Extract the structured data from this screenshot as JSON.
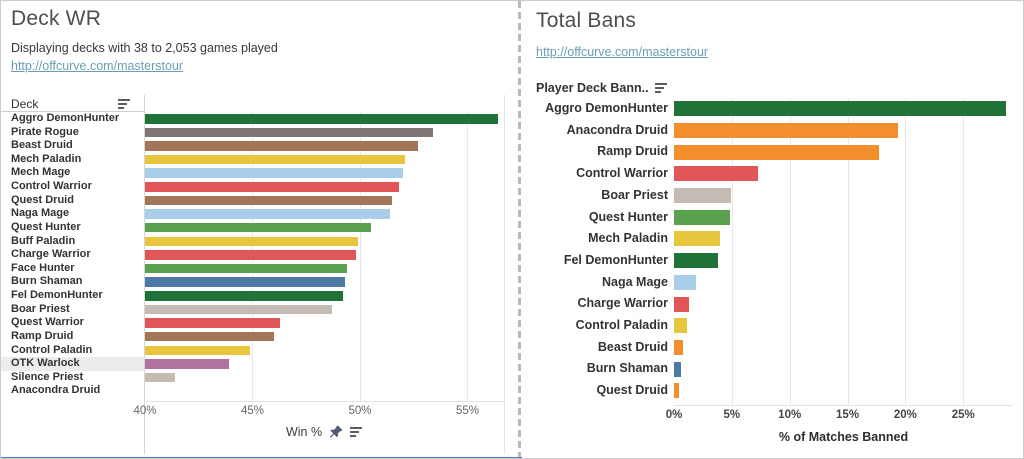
{
  "left_panel": {
    "title": "Deck WR",
    "subtitle": "Displaying decks with 38 to 2,053 games played",
    "link": "http://offcurve.com/masterstour",
    "column_header": "Deck",
    "axis_label": "Win %"
  },
  "right_panel": {
    "title": "Total Bans",
    "link": "http://offcurve.com/masterstour",
    "column_header": "Player Deck Bann..",
    "axis_label": "% of Matches Banned"
  },
  "icons": {
    "column_sort": "sort-icon",
    "axis_sort": "sort-icon",
    "axis_pin": "pin-icon"
  },
  "colors": {
    "demonhunter_green": "#1f7339",
    "rogue_gray": "#7d7672",
    "druid_brown": "#a3765a",
    "druid_orange": "#f28e2b",
    "paladin_yellow": "#e7c63d",
    "mage_lightblue": "#a9cee9",
    "warrior_red": "#e15759",
    "hunter_green": "#59a14f",
    "shaman_blue": "#4e79a7",
    "priest_gray": "#c4bcb4",
    "warlock_purple": "#b1729e",
    "link_blue": "#6b9eb4",
    "selection_blue": "#4b7bca"
  },
  "chart_data": [
    {
      "type": "bar",
      "orientation": "horizontal",
      "title": "Deck WR",
      "xlabel": "Win %",
      "ylabel": "Deck",
      "xlim": [
        40,
        56.7
      ],
      "tick_labels": [
        "40%",
        "45%",
        "50%",
        "55%"
      ],
      "tick_values": [
        40,
        45,
        50,
        55
      ],
      "grid": true,
      "categories": [
        "Aggro DemonHunter",
        "Pirate Rogue",
        "Beast Druid",
        "Mech Paladin",
        "Mech Mage",
        "Control Warrior",
        "Quest Druid",
        "Naga Mage",
        "Quest Hunter",
        "Buff Paladin",
        "Charge Warrior",
        "Face Hunter",
        "Burn Shaman",
        "Fel DemonHunter",
        "Boar Priest",
        "Quest Warrior",
        "Ramp Druid",
        "Control Paladin",
        "OTK Warlock",
        "Silence Priest",
        "Anacondra Druid"
      ],
      "values": [
        56.4,
        53.4,
        52.7,
        52.1,
        52.0,
        51.8,
        51.5,
        51.4,
        50.5,
        49.9,
        49.8,
        49.4,
        49.3,
        49.2,
        48.7,
        46.3,
        46.0,
        44.9,
        43.9,
        41.4,
        40.0
      ],
      "bar_colors": [
        "#1f7339",
        "#7d7672",
        "#a3765a",
        "#e7c63d",
        "#a9cee9",
        "#e15759",
        "#a3765a",
        "#a9cee9",
        "#59a14f",
        "#e7c63d",
        "#e15759",
        "#59a14f",
        "#4e79a7",
        "#1f7339",
        "#c4bcb4",
        "#e15759",
        "#a3765a",
        "#e7c63d",
        "#b1729e",
        "#c4bcb4",
        "#a3765a"
      ],
      "highlighted_category": "OTK Warlock"
    },
    {
      "type": "bar",
      "orientation": "horizontal",
      "title": "Total Bans",
      "xlabel": "% of Matches Banned",
      "ylabel": "Player Deck Bann..",
      "xlim": [
        0,
        29.3
      ],
      "tick_labels": [
        "0%",
        "5%",
        "10%",
        "15%",
        "20%",
        "25%"
      ],
      "tick_values": [
        0,
        5,
        10,
        15,
        20,
        25
      ],
      "grid": true,
      "categories": [
        "Aggro DemonHunter",
        "Anacondra Druid",
        "Ramp Druid",
        "Control Warrior",
        "Boar Priest",
        "Quest Hunter",
        "Mech Paladin",
        "Fel DemonHunter",
        "Naga Mage",
        "Charge Warrior",
        "Control Paladin",
        "Beast Druid",
        "Burn Shaman",
        "Quest Druid"
      ],
      "values": [
        28.7,
        19.4,
        17.7,
        7.3,
        4.9,
        4.8,
        4.0,
        3.8,
        1.9,
        1.3,
        1.1,
        0.8,
        0.6,
        0.4
      ],
      "bar_colors": [
        "#1f7339",
        "#f28e2b",
        "#f28e2b",
        "#e15759",
        "#c4bcb4",
        "#59a14f",
        "#e7c63d",
        "#1f7339",
        "#a9cee9",
        "#e15759",
        "#e7c63d",
        "#f28e2b",
        "#4e79a7",
        "#f28e2b"
      ]
    }
  ]
}
